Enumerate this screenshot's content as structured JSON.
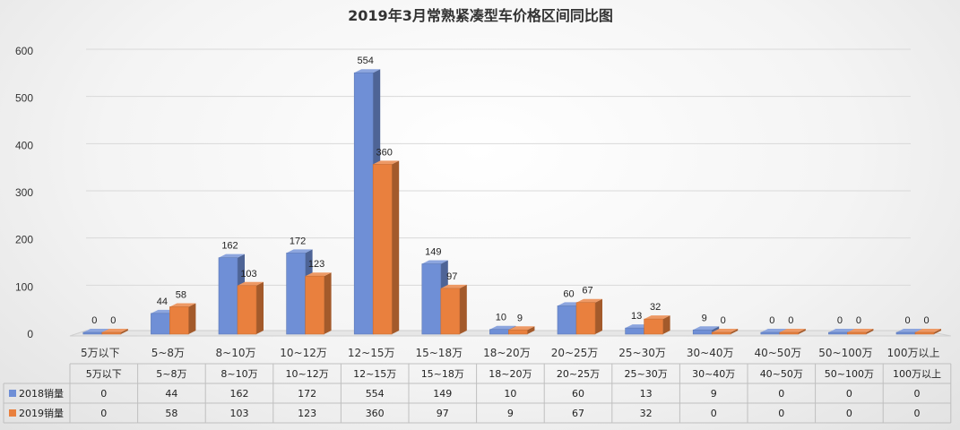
{
  "chart_data": {
    "type": "bar",
    "title": "2019年3月常熟紧凑型车价格区间同比图",
    "categories": [
      "5万以下",
      "5~8万",
      "8~10万",
      "10~12万",
      "12~15万",
      "15~18万",
      "18~20万",
      "20~25万",
      "25~30万",
      "30~40万",
      "40~50万",
      "50~100万",
      "100万以上"
    ],
    "series": [
      {
        "name": "2018销量",
        "color": "#6f8fd6",
        "values": [
          0,
          44,
          162,
          172,
          554,
          149,
          10,
          60,
          13,
          9,
          0,
          0,
          0
        ]
      },
      {
        "name": "2019销量",
        "color": "#e9803e",
        "values": [
          0,
          58,
          103,
          123,
          360,
          97,
          9,
          67,
          32,
          0,
          0,
          0,
          0
        ]
      }
    ],
    "ylim": [
      0,
      600
    ],
    "yticks": [
      0,
      100,
      200,
      300,
      400,
      500,
      600
    ],
    "grid": true,
    "legend": "data-table",
    "xlabel": "",
    "ylabel": ""
  }
}
